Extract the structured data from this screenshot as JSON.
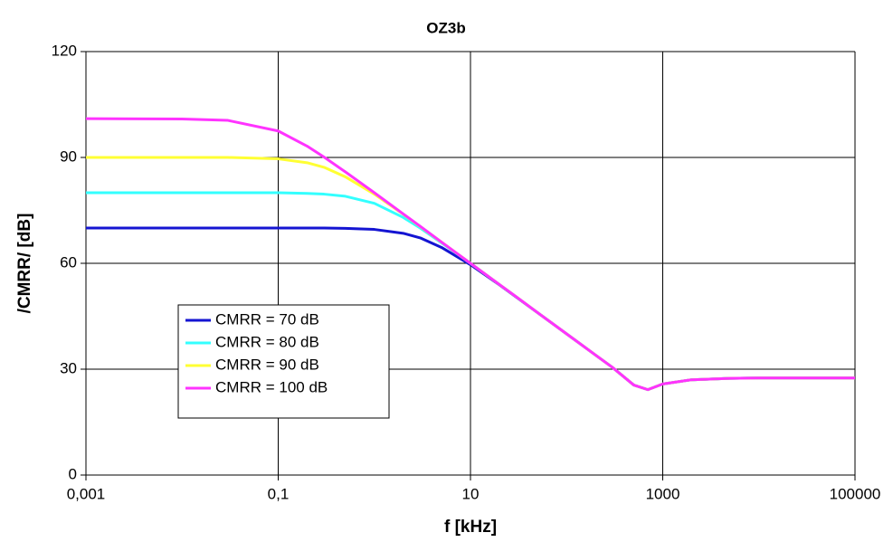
{
  "chart_data": {
    "type": "line",
    "title": "OZ3b",
    "xlabel": "f  [kHz]",
    "ylabel": "/CMRR/  [dB]",
    "xscale": "log",
    "grid": true,
    "legend": "lower left",
    "x": [
      0.001,
      0.01,
      0.03,
      0.1,
      0.2,
      0.3,
      0.5,
      1,
      2,
      3,
      5,
      10,
      20,
      30,
      50,
      100,
      200,
      300,
      500,
      700,
      1000,
      2000,
      5000,
      10000,
      100000
    ],
    "series": [
      {
        "name": "CMRR = 70 dB",
        "color": "#1414d2",
        "values": [
          70,
          70,
          70,
          70,
          70,
          70,
          69.9,
          69.6,
          68.5,
          67.2,
          64.5,
          59.6,
          53.9,
          50.4,
          46,
          40,
          34,
          30.5,
          25.5,
          24.2,
          25.8,
          27,
          27.4,
          27.5,
          27.5
        ]
      },
      {
        "name": "CMRR = 80 dB",
        "color": "#33ffff",
        "values": [
          80,
          80,
          80,
          80,
          79.8,
          79.6,
          79,
          77,
          73,
          70,
          65.8,
          60,
          54,
          50.5,
          46,
          40,
          34,
          30.5,
          25.5,
          24.2,
          25.8,
          27,
          27.4,
          27.5,
          27.5
        ]
      },
      {
        "name": "CMRR = 90 dB",
        "color": "#ffff33",
        "values": [
          90,
          90,
          90,
          89.6,
          88.5,
          87.2,
          84.5,
          79.6,
          73.9,
          70.4,
          66,
          60,
          54,
          50.5,
          46,
          40,
          34,
          30.5,
          25.5,
          24.2,
          25.8,
          27,
          27.4,
          27.5,
          27.5
        ]
      },
      {
        "name": "CMRR = 100 dB",
        "color": "#ff33ff",
        "values": [
          101,
          100.9,
          100.5,
          97.5,
          93.2,
          90.1,
          85.9,
          80,
          74,
          70.5,
          66,
          60,
          54,
          50.5,
          46,
          40,
          34,
          30.5,
          25.5,
          24.2,
          25.8,
          27,
          27.4,
          27.5,
          27.5
        ]
      }
    ],
    "xlim": [
      0.001,
      100000
    ],
    "xticks": [
      {
        "value": 0.001,
        "label": "0,001"
      },
      {
        "value": 0.1,
        "label": "0,1"
      },
      10,
      1000,
      100000
    ],
    "ylim": [
      0,
      120
    ],
    "yticks": [
      0,
      30,
      60,
      90,
      120
    ]
  }
}
